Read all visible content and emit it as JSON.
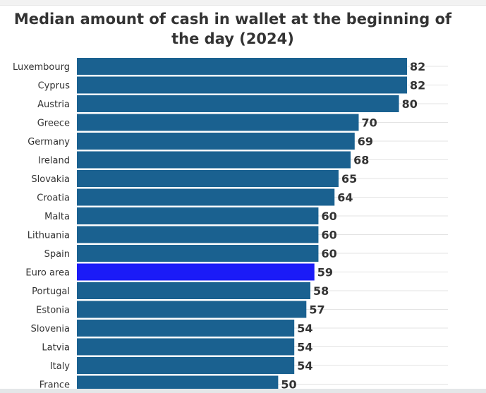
{
  "chart_data": {
    "type": "bar",
    "orientation": "horizontal",
    "title": "Median amount of cash in wallet at the beginning of the day (2024)",
    "xlabel": "",
    "ylabel": "",
    "xlim": [
      0,
      82
    ],
    "grid": true,
    "legend": "none",
    "categories": [
      "Luxembourg",
      "Cyprus",
      "Austria",
      "Greece",
      "Germany",
      "Ireland",
      "Slovakia",
      "Croatia",
      "Malta",
      "Lithuania",
      "Spain",
      "Euro area",
      "Portugal",
      "Estonia",
      "Slovenia",
      "Latvia",
      "Italy",
      "France"
    ],
    "values": [
      82,
      82,
      80,
      70,
      69,
      68,
      65,
      64,
      60,
      60,
      60,
      59,
      58,
      57,
      54,
      54,
      54,
      50
    ],
    "highlight": "Euro area",
    "colors": {
      "bar": "#1a6190",
      "highlight": "#1b1bf7",
      "grid": "#e3e3e3",
      "label": "#333333"
    }
  }
}
